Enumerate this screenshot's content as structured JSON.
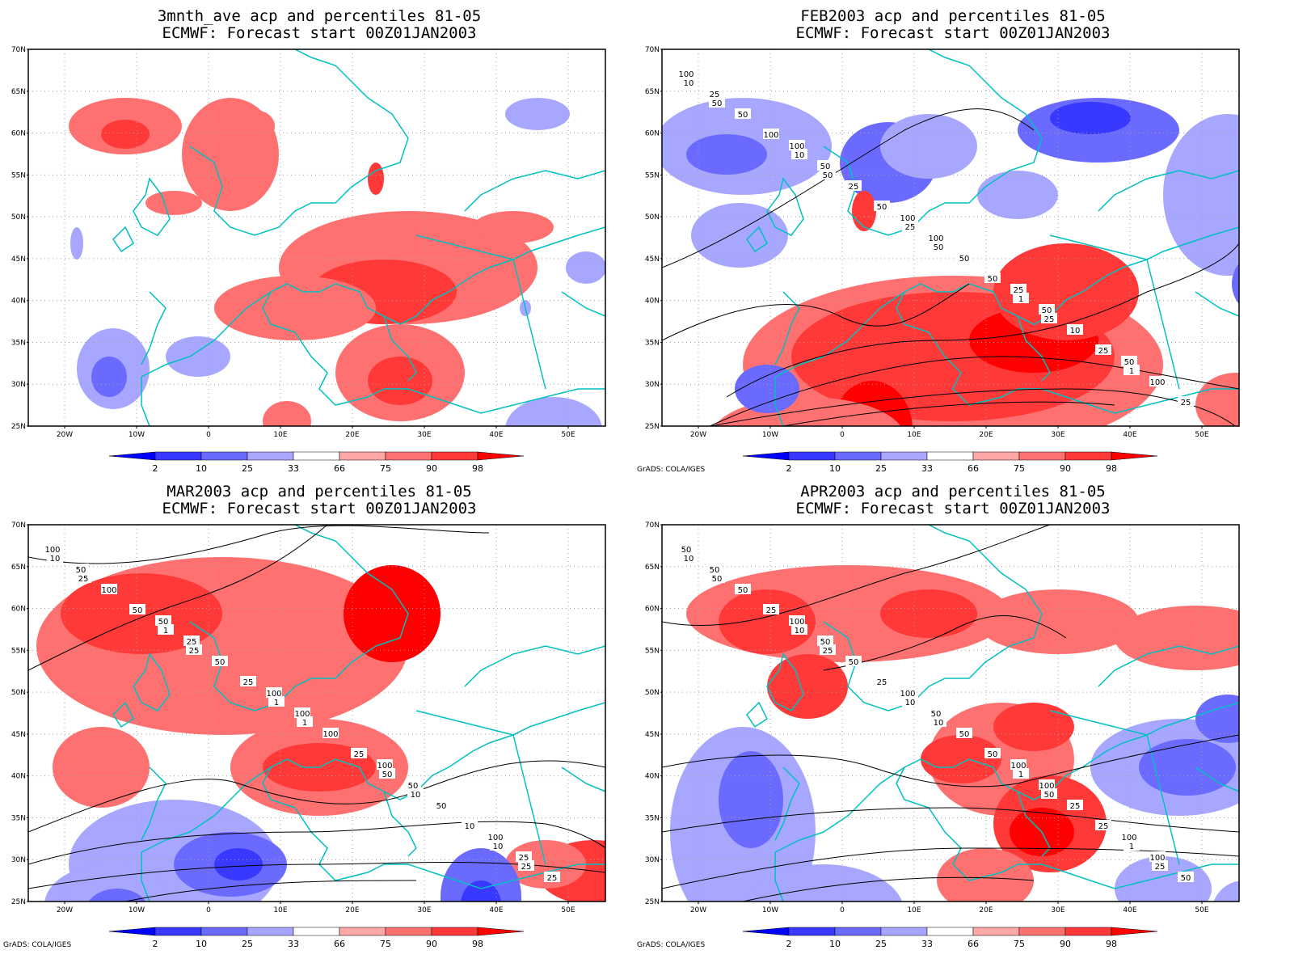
{
  "panels": [
    {
      "id": "3mnth",
      "title_line1": "3mnth_ave acp and percentiles 81-05",
      "title_line2": "ECMWF: Forecast start 00Z01JAN2003",
      "credit": "",
      "contour_labels": []
    },
    {
      "id": "feb",
      "title_line1": "FEB2003 acp and percentiles 81-05",
      "title_line2": "ECMWF: Forecast start 00Z01JAN2003",
      "credit": "GrADS: COLA/IGES",
      "contour_labels": [
        "100",
        "100",
        "100",
        "25",
        "50",
        "25",
        "50",
        "100",
        "50",
        "100",
        "50",
        "25",
        "50",
        "10",
        "25",
        "100",
        "50",
        "50",
        "25",
        "10",
        "10",
        "25",
        "1",
        "1",
        "50",
        "50",
        "50",
        "25"
      ]
    },
    {
      "id": "mar",
      "title_line1": "MAR2003 acp and percentiles 81-05",
      "title_line2": "ECMWF: Forecast start 00Z01JAN2003",
      "credit": "GrADS: COLA/IGES",
      "contour_labels": [
        "100",
        "50",
        "100",
        "100",
        "100",
        "50",
        "25",
        "100",
        "50",
        "25",
        "100",
        "50",
        "100",
        "50",
        "25",
        "50",
        "25",
        "25",
        "10",
        "10",
        "1",
        "1",
        "50",
        "10",
        "25",
        "25",
        "1",
        "10",
        "25"
      ]
    },
    {
      "id": "apr",
      "title_line1": "APR2003 acp and percentiles 81-05",
      "title_line2": "ECMWF: Forecast start 00Z01JAN2003",
      "credit": "GrADS: COLA/IGES",
      "contour_labels": [
        "50",
        "100",
        "100",
        "100",
        "100",
        "50",
        "50",
        "50",
        "100",
        "100",
        "50",
        "50",
        "50",
        "25",
        "50",
        "25",
        "25",
        "50",
        "25",
        "10",
        "10",
        "10",
        "1",
        "1",
        "50",
        "25",
        "10",
        "50",
        "25"
      ]
    }
  ],
  "axes": {
    "lat_labels": [
      "70N",
      "65N",
      "60N",
      "55N",
      "50N",
      "45N",
      "40N",
      "35N",
      "30N",
      "25N"
    ],
    "lon_labels": [
      "20W",
      "10W",
      "0",
      "10E",
      "20E",
      "30E",
      "40E",
      "50E"
    ]
  },
  "colorbar": {
    "labels": [
      "2",
      "10",
      "25",
      "33",
      "66",
      "75",
      "90",
      "98"
    ],
    "colors": [
      "#0000ff",
      "#3838ff",
      "#6a6aff",
      "#a7a7ff",
      "#ffffff",
      "#ffa7a7",
      "#ff7070",
      "#ff3838",
      "#ff0000"
    ]
  },
  "colors": {
    "coast": "#00c0c0",
    "contour": "#000000",
    "grid": "#a0a0a0"
  }
}
